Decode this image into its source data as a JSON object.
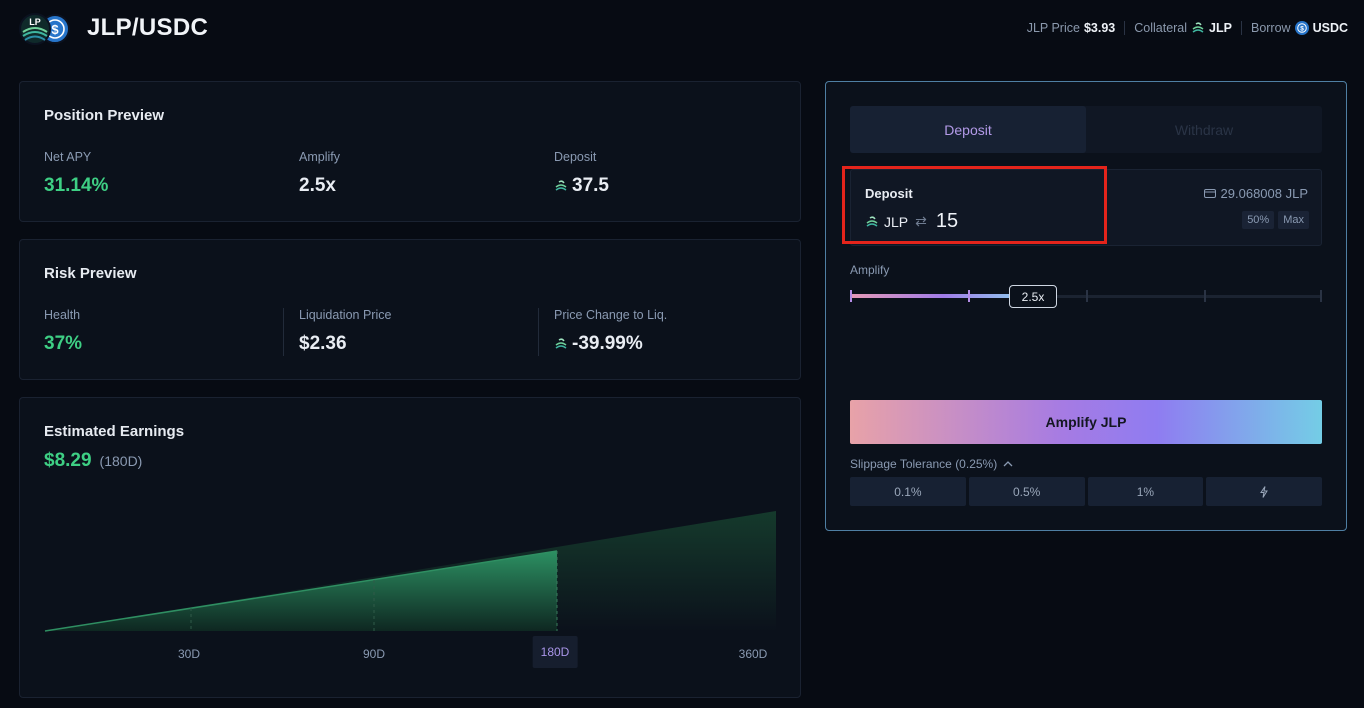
{
  "header": {
    "title": "JLP/USDC",
    "logo_badge": "LP",
    "price_label": "JLP Price",
    "price_value": "$3.93",
    "collateral_label": "Collateral",
    "collateral_token": "JLP",
    "borrow_label": "Borrow",
    "borrow_token": "USDC"
  },
  "position_preview": {
    "title": "Position Preview",
    "net_apy_label": "Net APY",
    "net_apy_value": "31.14%",
    "amplify_label": "Amplify",
    "amplify_value": "2.5x",
    "deposit_label": "Deposit",
    "deposit_value": "37.5"
  },
  "risk_preview": {
    "title": "Risk Preview",
    "health_label": "Health",
    "health_value": "37%",
    "liq_price_label": "Liquidation Price",
    "liq_price_value": "$2.36",
    "price_change_label": "Price Change to Liq.",
    "price_change_value": "-39.99%"
  },
  "earnings": {
    "title": "Estimated Earnings",
    "amount": "$8.29",
    "period": "(180D)",
    "ticks": [
      "30D",
      "90D",
      "180D",
      "360D"
    ],
    "selected_tick": "180D"
  },
  "panel": {
    "tabs": [
      "Deposit",
      "Withdraw"
    ],
    "active_tab": "Deposit",
    "deposit_label": "Deposit",
    "token": "JLP",
    "amount": "15",
    "balance": "29.068008 JLP",
    "half_btn": "50%",
    "max_btn": "Max",
    "amplify_label": "Amplify",
    "amplify_value": "2.5x",
    "amplify_level": 2.5,
    "amplify_button": "Amplify JLP",
    "slippage_label": "Slippage Tolerance (0.25%)",
    "slippage_options": [
      "0.1%",
      "0.5%",
      "1%"
    ]
  },
  "colors": {
    "accent_green": "#3ecf84",
    "accent_purple": "#b39ae8",
    "highlight_red": "#e4241b"
  }
}
